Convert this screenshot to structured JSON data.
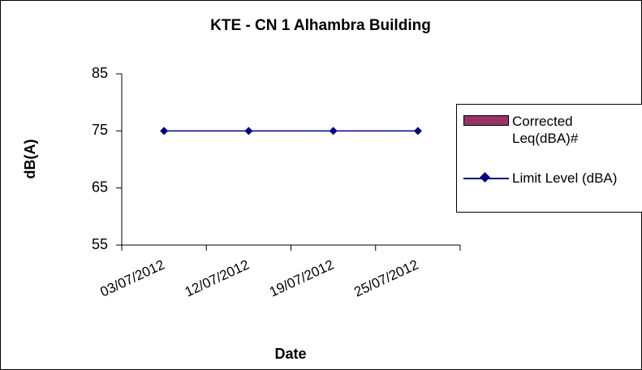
{
  "chart_data": {
    "type": "line",
    "title": "KTE - CN 1 Alhambra Building",
    "xlabel": "Date",
    "ylabel": "dB(A)",
    "categories": [
      "03/07/2012",
      "12/07/2012",
      "19/07/2012",
      "25/07/2012"
    ],
    "series": [
      {
        "name": "Corrected Leq(dBA)#",
        "type": "bar",
        "color": "#993366",
        "values": [
          null,
          null,
          null,
          null
        ]
      },
      {
        "name": "Limit Level (dBA)",
        "type": "line",
        "color": "#000080",
        "values": [
          75,
          75,
          75,
          75
        ]
      }
    ],
    "ylim": [
      55,
      85
    ],
    "yticks": [
      55,
      65,
      75,
      85
    ],
    "grid": false,
    "legend": "right"
  }
}
